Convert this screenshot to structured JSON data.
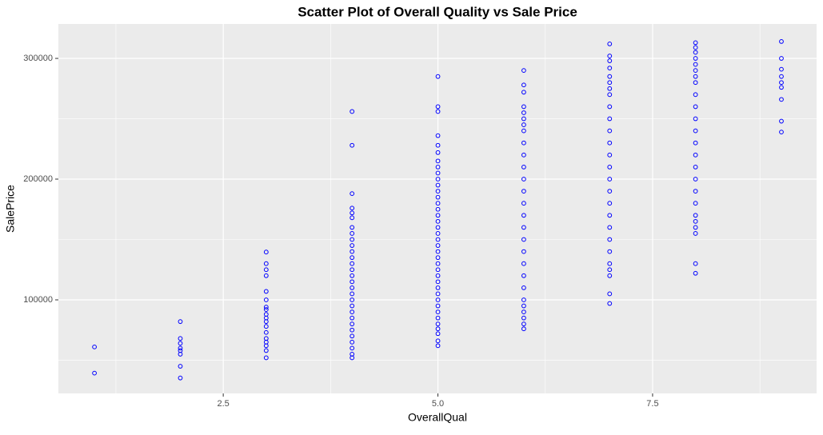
{
  "chart_data": {
    "type": "scatter",
    "title": "Scatter Plot of Overall Quality vs Sale Price",
    "x_label": "OverallQual",
    "y_label": "SalePrice",
    "color": "#0000ff",
    "grid": true,
    "xlim": [
      0.58,
      9.41
    ],
    "ylim": [
      22500,
      328500
    ],
    "xticks": [
      2.5,
      {
        "value": 5,
        "label": "5.0"
      },
      7.5
    ],
    "yticks": [
      100000,
      200000,
      300000
    ],
    "x": [
      1,
      1,
      2,
      2,
      2,
      2,
      2,
      2,
      2,
      2,
      3,
      3,
      3,
      3,
      3,
      3,
      3,
      3,
      3,
      3,
      3,
      3,
      3,
      3,
      3,
      3,
      3,
      3,
      4,
      4,
      4,
      4,
      4,
      4,
      4,
      4,
      4,
      4,
      4,
      4,
      4,
      4,
      4,
      4,
      4,
      4,
      4,
      4,
      4,
      4,
      4,
      4,
      4,
      4,
      4,
      4,
      4,
      5,
      5,
      5,
      5,
      5,
      5,
      5,
      5,
      5,
      5,
      5,
      5,
      5,
      5,
      5,
      5,
      5,
      5,
      5,
      5,
      5,
      5,
      5,
      5,
      5,
      5,
      5,
      5,
      5,
      5,
      5,
      5,
      5,
      5,
      5,
      5,
      5,
      5,
      6,
      6,
      6,
      6,
      6,
      6,
      6,
      6,
      6,
      6,
      6,
      6,
      6,
      6,
      6,
      6,
      6,
      6,
      6,
      6,
      6,
      6,
      6,
      6,
      6,
      6,
      6,
      7,
      7,
      7,
      7,
      7,
      7,
      7,
      7,
      7,
      7,
      7,
      7,
      7,
      7,
      7,
      7,
      7,
      7,
      7,
      7,
      7,
      7,
      7,
      7,
      7,
      7,
      8,
      8,
      8,
      8,
      8,
      8,
      8,
      8,
      8,
      8,
      8,
      8,
      8,
      8,
      8,
      8,
      8,
      8,
      8,
      8,
      8,
      8,
      8,
      8,
      9,
      9,
      9,
      9,
      9,
      9,
      9,
      9,
      9
    ],
    "values": [
      61000,
      39300,
      82000,
      68000,
      64000,
      60000,
      58000,
      55000,
      45000,
      35300,
      139600,
      130000,
      125000,
      120000,
      107000,
      100000,
      94000,
      92000,
      88000,
      85000,
      82000,
      78000,
      73000,
      68000,
      65000,
      62000,
      58000,
      52000,
      256000,
      228000,
      188000,
      176000,
      172000,
      168000,
      160000,
      155000,
      150000,
      145000,
      140000,
      135000,
      130000,
      125000,
      120000,
      115000,
      110000,
      105000,
      100000,
      95000,
      90000,
      85000,
      80000,
      75000,
      70000,
      65000,
      60000,
      55000,
      52000,
      285000,
      260000,
      256000,
      236000,
      228000,
      222000,
      215000,
      210000,
      205000,
      200000,
      195000,
      190000,
      185000,
      180000,
      175000,
      170000,
      165000,
      160000,
      155000,
      150000,
      145000,
      140000,
      135000,
      130000,
      125000,
      120000,
      115000,
      110000,
      105000,
      100000,
      95000,
      90000,
      85000,
      80000,
      76000,
      72000,
      66000,
      62000,
      290000,
      278000,
      272000,
      260000,
      255000,
      250000,
      245000,
      240000,
      230000,
      220000,
      210000,
      200000,
      190000,
      180000,
      170000,
      160000,
      150000,
      140000,
      130000,
      120000,
      110000,
      100000,
      95000,
      90000,
      85000,
      80000,
      76000,
      312000,
      302000,
      298000,
      292000,
      285000,
      280000,
      275000,
      270000,
      260000,
      250000,
      240000,
      230000,
      220000,
      210000,
      200000,
      190000,
      180000,
      170000,
      160000,
      150000,
      140000,
      130000,
      125000,
      120000,
      105000,
      97000,
      313000,
      309000,
      305000,
      300000,
      295000,
      290000,
      285000,
      280000,
      270000,
      260000,
      250000,
      240000,
      230000,
      220000,
      210000,
      200000,
      190000,
      180000,
      170000,
      165000,
      160000,
      155000,
      130000,
      122000,
      314000,
      300000,
      291000,
      285000,
      280000,
      276000,
      266000,
      248000,
      239000
    ]
  }
}
